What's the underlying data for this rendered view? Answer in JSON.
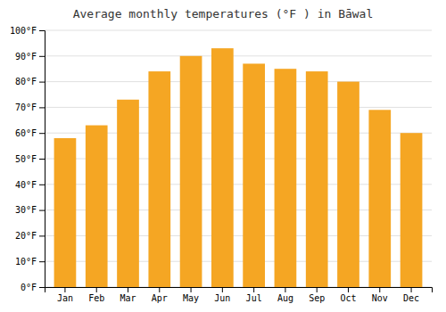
{
  "chart_data": {
    "type": "bar",
    "title": "Average monthly temperatures (°F ) in Bāwal",
    "categories": [
      "Jan",
      "Feb",
      "Mar",
      "Apr",
      "May",
      "Jun",
      "Jul",
      "Aug",
      "Sep",
      "Oct",
      "Nov",
      "Dec"
    ],
    "values": [
      58,
      63,
      73,
      84,
      90,
      93,
      87,
      85,
      84,
      80,
      69,
      60
    ],
    "color": "#F5A623",
    "ylim": [
      0,
      100
    ],
    "yticks": [
      {
        "value": 0,
        "label": "0°F"
      },
      {
        "value": 10,
        "label": "10°F"
      },
      {
        "value": 20,
        "label": "20°F"
      },
      {
        "value": 30,
        "label": "30°F"
      },
      {
        "value": 40,
        "label": "40°F"
      },
      {
        "value": 50,
        "label": "50°F"
      },
      {
        "value": 60,
        "label": "60°F"
      },
      {
        "value": 70,
        "label": "70°F"
      },
      {
        "value": 80,
        "label": "80°F"
      },
      {
        "value": 90,
        "label": "90°F"
      },
      {
        "value": 100,
        "label": "100°F"
      }
    ],
    "grid": true
  }
}
